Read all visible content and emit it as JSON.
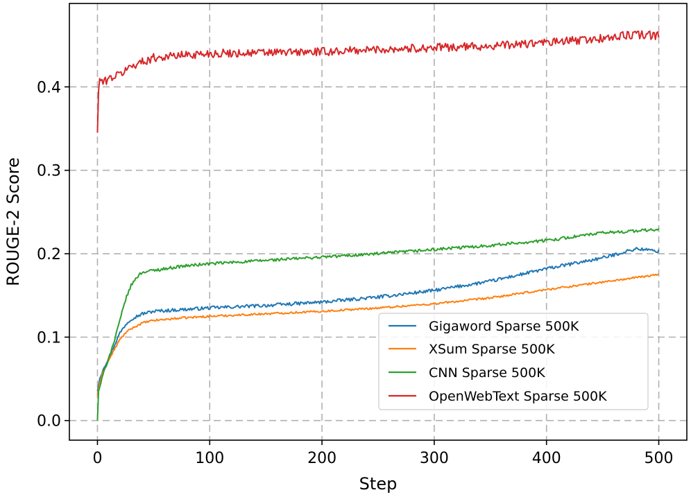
{
  "chart_data": {
    "type": "line",
    "title": "",
    "xlabel": "Step",
    "ylabel": "ROUGE-2 Score",
    "xlim": [
      -25,
      525
    ],
    "ylim": [
      -0.0235,
      0.5
    ],
    "x_ticks": [
      0,
      100,
      200,
      300,
      400,
      500
    ],
    "x_tick_labels": [
      "0",
      "100",
      "200",
      "300",
      "400",
      "500"
    ],
    "y_ticks": [
      0.0,
      0.1,
      0.2,
      0.3,
      0.4
    ],
    "y_tick_labels": [
      "0.0",
      "0.1",
      "0.2",
      "0.3",
      "0.4"
    ],
    "grid": true,
    "legend_position": "lower-right",
    "series": [
      {
        "name": "Gigaword Sparse 500K",
        "color": "#1f77b4",
        "noise": 0.002,
        "points": [
          [
            0,
            0.035
          ],
          [
            2,
            0.05
          ],
          [
            5,
            0.062
          ],
          [
            10,
            0.075
          ],
          [
            15,
            0.09
          ],
          [
            20,
            0.105
          ],
          [
            25,
            0.115
          ],
          [
            30,
            0.122
          ],
          [
            40,
            0.128
          ],
          [
            50,
            0.131
          ],
          [
            75,
            0.133
          ],
          [
            100,
            0.135
          ],
          [
            150,
            0.138
          ],
          [
            200,
            0.142
          ],
          [
            250,
            0.148
          ],
          [
            300,
            0.156
          ],
          [
            350,
            0.167
          ],
          [
            400,
            0.182
          ],
          [
            450,
            0.195
          ],
          [
            480,
            0.206
          ],
          [
            500,
            0.203
          ]
        ]
      },
      {
        "name": "XSum Sparse 500K",
        "color": "#ff7f0e",
        "noise": 0.0012,
        "points": [
          [
            0,
            0.03
          ],
          [
            2,
            0.045
          ],
          [
            5,
            0.058
          ],
          [
            10,
            0.072
          ],
          [
            15,
            0.085
          ],
          [
            20,
            0.097
          ],
          [
            25,
            0.105
          ],
          [
            30,
            0.11
          ],
          [
            40,
            0.117
          ],
          [
            50,
            0.12
          ],
          [
            75,
            0.123
          ],
          [
            100,
            0.125
          ],
          [
            150,
            0.128
          ],
          [
            200,
            0.131
          ],
          [
            250,
            0.135
          ],
          [
            300,
            0.14
          ],
          [
            350,
            0.147
          ],
          [
            400,
            0.157
          ],
          [
            450,
            0.166
          ],
          [
            500,
            0.175
          ]
        ]
      },
      {
        "name": "CNN Sparse 500K",
        "color": "#2ca02c",
        "noise": 0.0018,
        "points": [
          [
            0,
            0.0
          ],
          [
            1,
            0.035
          ],
          [
            5,
            0.055
          ],
          [
            10,
            0.075
          ],
          [
            15,
            0.095
          ],
          [
            20,
            0.12
          ],
          [
            25,
            0.145
          ],
          [
            30,
            0.162
          ],
          [
            35,
            0.172
          ],
          [
            40,
            0.178
          ],
          [
            50,
            0.18
          ],
          [
            75,
            0.185
          ],
          [
            100,
            0.188
          ],
          [
            150,
            0.192
          ],
          [
            200,
            0.196
          ],
          [
            250,
            0.2
          ],
          [
            300,
            0.205
          ],
          [
            350,
            0.21
          ],
          [
            400,
            0.216
          ],
          [
            450,
            0.225
          ],
          [
            500,
            0.229
          ]
        ]
      },
      {
        "name": "OpenWebText Sparse 500K",
        "color": "#d62728",
        "noise": 0.005,
        "points": [
          [
            0,
            0.345
          ],
          [
            1,
            0.395
          ],
          [
            2,
            0.41
          ],
          [
            5,
            0.405
          ],
          [
            10,
            0.41
          ],
          [
            20,
            0.415
          ],
          [
            30,
            0.425
          ],
          [
            40,
            0.43
          ],
          [
            50,
            0.435
          ],
          [
            75,
            0.438
          ],
          [
            100,
            0.44
          ],
          [
            150,
            0.441
          ],
          [
            200,
            0.442
          ],
          [
            250,
            0.445
          ],
          [
            300,
            0.447
          ],
          [
            350,
            0.449
          ],
          [
            400,
            0.453
          ],
          [
            450,
            0.458
          ],
          [
            480,
            0.463
          ],
          [
            500,
            0.461
          ]
        ]
      }
    ]
  }
}
